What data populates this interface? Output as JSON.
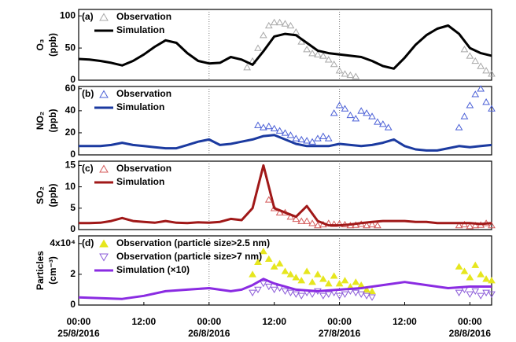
{
  "chart_data": [
    {
      "type": "line",
      "label": "(a)",
      "ylabel": "O₃",
      "ylabel_unit": "(ppb)",
      "xlim": [
        0,
        76
      ],
      "ylim": [
        0,
        110
      ],
      "yticks": [
        0,
        50,
        100
      ],
      "xgrid": [
        24,
        48
      ],
      "series": [
        {
          "name": "Observation",
          "color": "#a8a8a8",
          "marker": "triangle-up",
          "filled": false,
          "x": [
            31,
            32,
            33,
            34,
            35,
            36,
            37,
            38,
            39,
            40,
            41,
            42,
            43,
            44,
            45,
            46,
            47,
            48,
            49,
            50,
            51,
            71,
            72,
            73,
            74,
            75,
            76
          ],
          "values": [
            20,
            30,
            50,
            70,
            85,
            90,
            90,
            88,
            85,
            75,
            60,
            48,
            42,
            40,
            38,
            32,
            25,
            15,
            10,
            8,
            6,
            48,
            38,
            30,
            22,
            15,
            10
          ]
        },
        {
          "name": "Simulation",
          "color": "#000000",
          "x": [
            0,
            2,
            4,
            6,
            8,
            10,
            12,
            14,
            16,
            18,
            20,
            22,
            24,
            26,
            28,
            30,
            32,
            34,
            36,
            38,
            40,
            42,
            44,
            46,
            48,
            50,
            52,
            54,
            56,
            58,
            60,
            62,
            64,
            66,
            68,
            70,
            72,
            74,
            76
          ],
          "values": [
            33,
            32,
            30,
            27,
            23,
            30,
            40,
            52,
            62,
            58,
            42,
            30,
            26,
            27,
            36,
            32,
            24,
            45,
            68,
            72,
            70,
            58,
            46,
            42,
            40,
            38,
            36,
            30,
            22,
            18,
            35,
            55,
            70,
            80,
            85,
            72,
            50,
            42,
            38
          ]
        }
      ]
    },
    {
      "type": "line",
      "label": "(b)",
      "ylabel": "NO₂",
      "ylabel_unit": "(ppb)",
      "xlim": [
        0,
        76
      ],
      "ylim": [
        0,
        62
      ],
      "yticks": [
        0,
        20,
        40,
        60
      ],
      "xgrid": [
        24,
        48
      ],
      "series": [
        {
          "name": "Observation",
          "color": "#4a5fd6",
          "marker": "triangle-up",
          "filled": false,
          "x": [
            33,
            34,
            35,
            36,
            37,
            38,
            39,
            40,
            41,
            42,
            43,
            44,
            45,
            46,
            47,
            48,
            49,
            50,
            51,
            52,
            53,
            54,
            55,
            56,
            57,
            70,
            71,
            72,
            73,
            74,
            75,
            76
          ],
          "values": [
            27,
            25,
            26,
            24,
            22,
            20,
            18,
            15,
            14,
            13,
            12,
            15,
            17,
            15,
            38,
            45,
            42,
            36,
            33,
            40,
            38,
            35,
            30,
            28,
            25,
            25,
            35,
            45,
            55,
            60,
            48,
            42
          ]
        },
        {
          "name": "Simulation",
          "color": "#1b3aa0",
          "x": [
            0,
            2,
            4,
            6,
            8,
            10,
            12,
            14,
            16,
            18,
            20,
            22,
            24,
            26,
            28,
            30,
            32,
            34,
            36,
            38,
            40,
            42,
            44,
            46,
            48,
            50,
            52,
            54,
            56,
            58,
            60,
            62,
            64,
            66,
            68,
            70,
            72,
            74,
            76
          ],
          "values": [
            8,
            8,
            8,
            9,
            11,
            9,
            8,
            7,
            6,
            6,
            9,
            12,
            14,
            9,
            10,
            12,
            14,
            17,
            18,
            14,
            10,
            8,
            8,
            8,
            10,
            9,
            8,
            9,
            11,
            14,
            8,
            5,
            4,
            4,
            6,
            8,
            7,
            8,
            9
          ]
        }
      ]
    },
    {
      "type": "line",
      "label": "(c)",
      "ylabel": "SO₂",
      "ylabel_unit": "(ppb)",
      "xlim": [
        0,
        76
      ],
      "ylim": [
        0,
        16
      ],
      "yticks": [
        0,
        5,
        10,
        15
      ],
      "xgrid": [
        24,
        48
      ],
      "series": [
        {
          "name": "Observation",
          "color": "#d45a5a",
          "marker": "triangle-up",
          "filled": false,
          "x": [
            35,
            36,
            37,
            38,
            39,
            40,
            41,
            42,
            43,
            44,
            45,
            46,
            47,
            48,
            49,
            50,
            51,
            52,
            53,
            54,
            55,
            70,
            71,
            72,
            73,
            74,
            75,
            76
          ],
          "values": [
            7,
            5,
            4,
            4,
            3,
            2.5,
            2,
            2,
            1.5,
            1,
            1.2,
            1.5,
            1.3,
            1.4,
            1.2,
            1,
            1.1,
            1.3,
            1,
            1.2,
            1,
            1,
            1.2,
            0.8,
            1,
            1.1,
            1.5,
            1
          ]
        },
        {
          "name": "Simulation",
          "color": "#a01818",
          "x": [
            0,
            2,
            4,
            6,
            8,
            10,
            12,
            14,
            16,
            18,
            20,
            22,
            24,
            26,
            28,
            30,
            32,
            34,
            35,
            36,
            38,
            40,
            42,
            44,
            46,
            48,
            50,
            52,
            54,
            56,
            58,
            60,
            62,
            64,
            66,
            68,
            70,
            72,
            74,
            76
          ],
          "values": [
            1.5,
            1.5,
            1.6,
            2,
            2.7,
            2,
            1.8,
            1.6,
            2,
            1.6,
            1.5,
            1.7,
            1.6,
            1.8,
            2.5,
            2.2,
            5,
            15,
            10,
            5,
            4,
            3,
            5.5,
            2,
            1,
            1,
            1.2,
            1.5,
            1.8,
            2,
            2,
            2,
            1.8,
            1.8,
            1.5,
            1.5,
            1.5,
            1.5,
            1.3,
            1.5
          ]
        }
      ]
    },
    {
      "type": "line",
      "label": "(d)",
      "ylabel": "Particles",
      "ylabel_unit": "(cm⁻³)",
      "xlim": [
        0,
        76
      ],
      "ylim": [
        0,
        45000
      ],
      "yticks": [
        0,
        {
          "value": 20000,
          "label": "2"
        },
        {
          "value": 40000,
          "label": "4x10⁴"
        }
      ],
      "xgrid": [
        24,
        48
      ],
      "xticks": [
        {
          "value": 0,
          "label": "00:00"
        },
        {
          "value": 12,
          "label": "12:00"
        },
        {
          "value": 24,
          "label": "00:00"
        },
        {
          "value": 36,
          "label": "12:00"
        },
        {
          "value": 48,
          "label": "00:00"
        },
        {
          "value": 60,
          "label": "12:00"
        },
        {
          "value": 72,
          "label": "00:00"
        }
      ],
      "xtick_dates": [
        {
          "value": 0,
          "label": "25/8/2016"
        },
        {
          "value": 24,
          "label": "26/8/2016"
        },
        {
          "value": 48,
          "label": "27/8/2016"
        },
        {
          "value": 72,
          "label": "28/8/2016"
        }
      ],
      "series": [
        {
          "name": "Observation (particle size>2.5 nm)",
          "color": "#e6e61e",
          "marker": "triangle-up",
          "filled": true,
          "x": [
            32,
            33,
            34,
            35,
            36,
            37,
            38,
            39,
            40,
            41,
            42,
            43,
            44,
            45,
            46,
            47,
            48,
            49,
            50,
            51,
            52,
            53,
            54,
            70,
            71,
            72,
            73,
            74,
            75,
            76
          ],
          "values": [
            20000,
            28000,
            35000,
            30000,
            25000,
            27000,
            22000,
            20000,
            18000,
            16000,
            22000,
            15000,
            20000,
            17000,
            14000,
            19000,
            14000,
            16000,
            12000,
            15000,
            13000,
            10000,
            9000,
            25000,
            22000,
            18000,
            26000,
            20000,
            17000,
            16000
          ]
        },
        {
          "name": "Observation (particle size>7 nm)",
          "color": "#8b5bd8",
          "marker": "triangle-down",
          "filled": false,
          "x": [
            32,
            33,
            34,
            35,
            36,
            37,
            38,
            39,
            40,
            41,
            42,
            43,
            44,
            45,
            46,
            47,
            48,
            49,
            50,
            51,
            52,
            53,
            54,
            70,
            71,
            72,
            73,
            74,
            75,
            76
          ],
          "values": [
            8000,
            10000,
            14000,
            12000,
            10000,
            11000,
            9000,
            8000,
            7000,
            6000,
            8000,
            7000,
            9000,
            6000,
            7000,
            8000,
            6000,
            7000,
            9000,
            8000,
            7000,
            6000,
            5000,
            8000,
            10000,
            7000,
            9000,
            6000,
            8000,
            7000
          ]
        },
        {
          "name": "Simulation (×10)",
          "color": "#8a2be2",
          "x": [
            0,
            4,
            8,
            12,
            16,
            20,
            24,
            28,
            30,
            32,
            34,
            36,
            40,
            44,
            48,
            52,
            56,
            60,
            64,
            68,
            72,
            76
          ],
          "values": [
            5000,
            4500,
            4000,
            6000,
            9000,
            10000,
            11000,
            9000,
            10000,
            13000,
            17000,
            14000,
            10000,
            9000,
            10000,
            11000,
            13000,
            15000,
            13000,
            11000,
            12000,
            12000
          ]
        }
      ]
    }
  ]
}
